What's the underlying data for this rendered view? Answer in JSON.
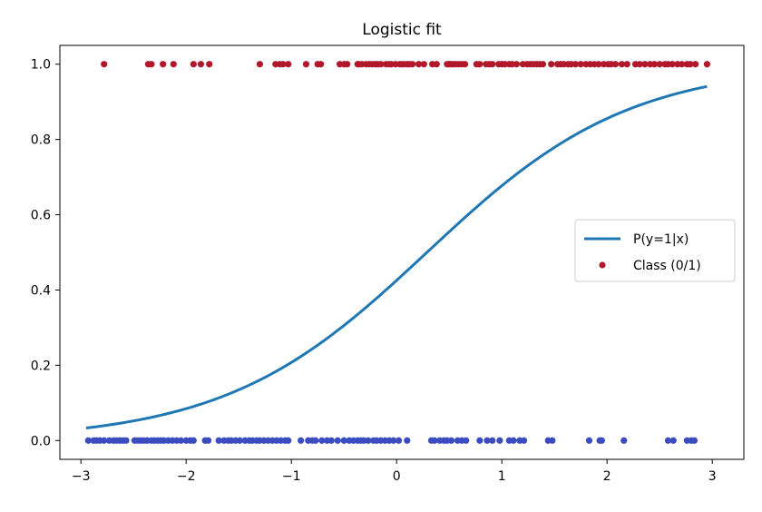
{
  "chart_data": {
    "type": "scatter",
    "title": "Logistic fit",
    "xlabel": "",
    "ylabel": "",
    "xlim": [
      -3.2,
      3.3
    ],
    "ylim": [
      -0.05,
      1.05
    ],
    "grid": false,
    "legend_placement": "center-right",
    "x_ticks": [
      -3,
      -2,
      -1,
      0,
      1,
      2,
      3
    ],
    "x_tick_labels": [
      "−3",
      "−2",
      "−1",
      "0",
      "1",
      "2",
      "3"
    ],
    "y_ticks": [
      0.0,
      0.2,
      0.4,
      0.6,
      0.8,
      1.0
    ],
    "y_tick_labels": [
      "0.0",
      "0.2",
      "0.4",
      "0.6",
      "0.8",
      "1.0"
    ],
    "series": [
      {
        "name": "P(y=1|x)",
        "kind": "line",
        "color": "#1f77b4",
        "x_range": [
          -2.95,
          2.95
        ],
        "model": {
          "intercept": -0.3,
          "slope": 1.04
        }
      },
      {
        "name": "Class (0/1)",
        "kind": "scatter",
        "color_class_1": "#b2182b",
        "color_class_0": "#3b4cc0",
        "class_1_x": [
          -2.78,
          -2.36,
          -2.33,
          -2.22,
          -2.12,
          -1.93,
          -1.86,
          -1.78,
          -1.3,
          -1.15,
          -1.11,
          -1.08,
          -1.03,
          -0.86,
          -0.75,
          -0.72,
          -0.54,
          -0.5,
          -0.47,
          -0.37,
          -0.36,
          -0.33,
          -0.29,
          -0.26,
          -0.23,
          -0.2,
          -0.18,
          -0.15,
          -0.1,
          -0.07,
          -0.05,
          -0.01,
          0.03,
          0.05,
          0.07,
          0.1,
          0.12,
          0.15,
          0.21,
          0.26,
          0.34,
          0.38,
          0.48,
          0.5,
          0.52,
          0.54,
          0.56,
          0.59,
          0.62,
          0.65,
          0.76,
          0.79,
          0.85,
          0.88,
          0.91,
          0.97,
          1.0,
          1.03,
          1.07,
          1.1,
          1.14,
          1.2,
          1.24,
          1.27,
          1.3,
          1.33,
          1.36,
          1.39,
          1.47,
          1.53,
          1.56,
          1.59,
          1.63,
          1.66,
          1.7,
          1.75,
          1.8,
          1.84,
          1.88,
          1.92,
          1.97,
          2.01,
          2.04,
          2.08,
          2.14,
          2.19,
          2.27,
          2.31,
          2.36,
          2.41,
          2.45,
          2.5,
          2.55,
          2.58,
          2.62,
          2.67,
          2.71,
          2.76,
          2.79,
          2.84,
          2.95
        ],
        "class_0_x": [
          -2.93,
          -2.88,
          -2.85,
          -2.82,
          -2.78,
          -2.73,
          -2.69,
          -2.66,
          -2.63,
          -2.6,
          -2.57,
          -2.49,
          -2.46,
          -2.43,
          -2.4,
          -2.37,
          -2.33,
          -2.3,
          -2.27,
          -2.24,
          -2.21,
          -2.17,
          -2.13,
          -2.09,
          -2.05,
          -2.0,
          -1.96,
          -1.93,
          -1.82,
          -1.79,
          -1.69,
          -1.64,
          -1.6,
          -1.57,
          -1.53,
          -1.49,
          -1.44,
          -1.4,
          -1.37,
          -1.33,
          -1.3,
          -1.26,
          -1.22,
          -1.18,
          -1.14,
          -1.1,
          -1.06,
          -1.03,
          -0.91,
          -0.84,
          -0.8,
          -0.77,
          -0.71,
          -0.66,
          -0.62,
          -0.56,
          -0.5,
          -0.45,
          -0.41,
          -0.37,
          -0.34,
          -0.31,
          -0.27,
          -0.22,
          -0.19,
          -0.15,
          -0.11,
          -0.07,
          -0.03,
          0.02,
          0.1,
          0.33,
          0.36,
          0.41,
          0.45,
          0.48,
          0.52,
          0.58,
          0.62,
          0.66,
          0.79,
          0.86,
          0.91,
          0.98,
          1.07,
          1.11,
          1.17,
          1.21,
          1.44,
          1.48,
          1.83,
          1.93,
          1.95,
          2.16,
          2.58,
          2.63,
          2.76,
          2.8,
          2.83
        ]
      }
    ]
  }
}
